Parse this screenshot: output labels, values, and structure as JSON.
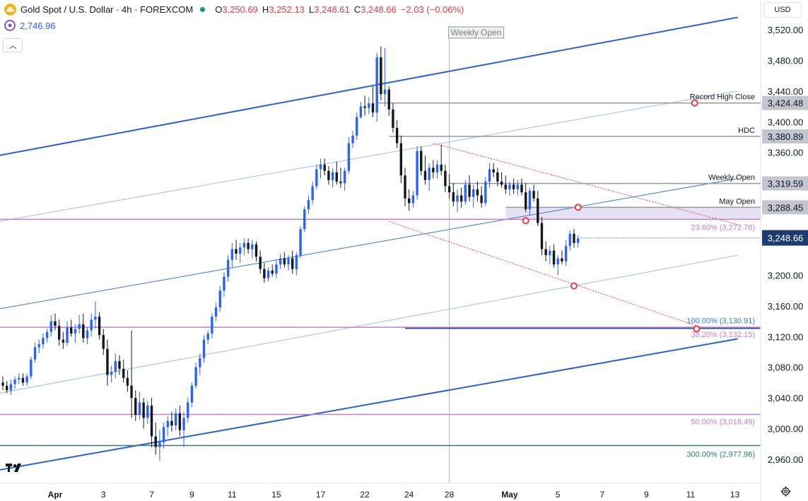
{
  "header": {
    "symbol_title": "Gold Spot / U.S. Dollar · 4h · FOREXCOM",
    "open_label": "O",
    "open": "3,250.69",
    "high_label": "H",
    "high": "3,252.13",
    "low_label": "L",
    "low": "3,248.61",
    "close_label": "C",
    "close": "3,248.66",
    "change": "−2.03 (−0.06%)",
    "indicator_value": "2,746.96"
  },
  "currency": "USD",
  "colors": {
    "up": "#2962ff",
    "down": "#131722",
    "channel": "#2a62c9",
    "pink": "#c77dca",
    "teal": "#2b7a78",
    "gray": "#9598a1",
    "red": "#f23645",
    "last_price": "#1e3a6e"
  },
  "chart_data": {
    "type": "candlestick",
    "title": "Gold Spot / U.S. Dollar · 4h · FOREXCOM",
    "ylim": [
      2940,
      3540
    ],
    "price_ticks": [
      "3,520.00",
      "3,480.00",
      "3,440.00",
      "3,400.00",
      "3,360.00",
      "3,200.00",
      "3,160.00",
      "3,120.00",
      "3,080.00",
      "3,040.00",
      "3,000.00",
      "2,960.00"
    ],
    "price_tick_values": [
      3520,
      3480,
      3440,
      3400,
      3360,
      3200,
      3160,
      3120,
      3080,
      3040,
      3000,
      2960
    ],
    "x_ticks": [
      {
        "label": "Apr",
        "bar": 13
      },
      {
        "label": "3",
        "bar": 25
      },
      {
        "label": "7",
        "bar": 37
      },
      {
        "label": "9",
        "bar": 47
      },
      {
        "label": "11",
        "bar": 57
      },
      {
        "label": "15",
        "bar": 68
      },
      {
        "label": "17",
        "bar": 79
      },
      {
        "label": "22",
        "bar": 90
      },
      {
        "label": "24",
        "bar": 101
      },
      {
        "label": "28",
        "bar": 111
      },
      {
        "label": "May",
        "bar": 126
      },
      {
        "label": "5",
        "bar": 138
      },
      {
        "label": "7",
        "bar": 149
      },
      {
        "label": "9",
        "bar": 160
      },
      {
        "label": "11",
        "bar": 171
      },
      {
        "label": "13",
        "bar": 182
      }
    ],
    "ohlc": [
      [
        3060,
        3068,
        3050,
        3056
      ],
      [
        3056,
        3062,
        3046,
        3050
      ],
      [
        3050,
        3064,
        3044,
        3058
      ],
      [
        3058,
        3068,
        3052,
        3064
      ],
      [
        3064,
        3072,
        3058,
        3066
      ],
      [
        3066,
        3072,
        3056,
        3060
      ],
      [
        3060,
        3072,
        3056,
        3068
      ],
      [
        3068,
        3094,
        3064,
        3090
      ],
      [
        3090,
        3112,
        3086,
        3106
      ],
      [
        3106,
        3116,
        3098,
        3110
      ],
      [
        3110,
        3124,
        3104,
        3118
      ],
      [
        3118,
        3130,
        3112,
        3126
      ],
      [
        3126,
        3148,
        3120,
        3140
      ],
      [
        3140,
        3150,
        3128,
        3134
      ],
      [
        3134,
        3142,
        3108,
        3116
      ],
      [
        3116,
        3126,
        3104,
        3112
      ],
      [
        3112,
        3140,
        3108,
        3132
      ],
      [
        3132,
        3142,
        3120,
        3124
      ],
      [
        3124,
        3136,
        3112,
        3130
      ],
      [
        3130,
        3148,
        3124,
        3136
      ],
      [
        3136,
        3150,
        3112,
        3118
      ],
      [
        3118,
        3132,
        3110,
        3128
      ],
      [
        3128,
        3150,
        3120,
        3142
      ],
      [
        3142,
        3166,
        3130,
        3146
      ],
      [
        3146,
        3152,
        3116,
        3122
      ],
      [
        3122,
        3130,
        3096,
        3104
      ],
      [
        3104,
        3116,
        3056,
        3070
      ],
      [
        3070,
        3082,
        3060,
        3074
      ],
      [
        3074,
        3098,
        3066,
        3088
      ],
      [
        3088,
        3096,
        3070,
        3078
      ],
      [
        3078,
        3090,
        3060,
        3066
      ],
      [
        3066,
        3076,
        3048,
        3056
      ],
      [
        3056,
        3128,
        3014,
        3040
      ],
      [
        3040,
        3050,
        3010,
        3018
      ],
      [
        3018,
        3048,
        3012,
        3034
      ],
      [
        3034,
        3040,
        3000,
        3014
      ],
      [
        3014,
        3036,
        3006,
        3030
      ],
      [
        3030,
        3040,
        2976,
        2990
      ],
      [
        2990,
        3008,
        2966,
        2976
      ],
      [
        2976,
        2998,
        2958,
        2982
      ],
      [
        2982,
        3008,
        2974,
        3002
      ],
      [
        3002,
        3016,
        2990,
        3010
      ],
      [
        3010,
        3022,
        2996,
        3004
      ],
      [
        3004,
        3026,
        2998,
        3020
      ],
      [
        3020,
        3030,
        2990,
        2998
      ],
      [
        2998,
        3022,
        2976,
        3014
      ],
      [
        3014,
        3040,
        3008,
        3034
      ],
      [
        3034,
        3060,
        3028,
        3056
      ],
      [
        3056,
        3086,
        3052,
        3080
      ],
      [
        3080,
        3098,
        3070,
        3092
      ],
      [
        3092,
        3122,
        3086,
        3116
      ],
      [
        3116,
        3128,
        3110,
        3124
      ],
      [
        3124,
        3150,
        3118,
        3146
      ],
      [
        3146,
        3164,
        3140,
        3158
      ],
      [
        3158,
        3186,
        3152,
        3180
      ],
      [
        3180,
        3204,
        3172,
        3198
      ],
      [
        3198,
        3226,
        3192,
        3220
      ],
      [
        3220,
        3242,
        3210,
        3234
      ],
      [
        3234,
        3246,
        3220,
        3228
      ],
      [
        3228,
        3242,
        3216,
        3236
      ],
      [
        3236,
        3248,
        3226,
        3242
      ],
      [
        3242,
        3248,
        3228,
        3234
      ],
      [
        3234,
        3246,
        3222,
        3240
      ],
      [
        3240,
        3244,
        3218,
        3224
      ],
      [
        3224,
        3232,
        3202,
        3208
      ],
      [
        3208,
        3216,
        3190,
        3196
      ],
      [
        3196,
        3210,
        3192,
        3206
      ],
      [
        3206,
        3214,
        3198,
        3202
      ],
      [
        3202,
        3220,
        3196,
        3214
      ],
      [
        3214,
        3228,
        3208,
        3222
      ],
      [
        3222,
        3230,
        3210,
        3214
      ],
      [
        3214,
        3226,
        3206,
        3222
      ],
      [
        3222,
        3232,
        3202,
        3208
      ],
      [
        3208,
        3230,
        3200,
        3226
      ],
      [
        3226,
        3264,
        3222,
        3260
      ],
      [
        3260,
        3290,
        3256,
        3286
      ],
      [
        3286,
        3304,
        3280,
        3298
      ],
      [
        3298,
        3322,
        3292,
        3316
      ],
      [
        3316,
        3344,
        3312,
        3338
      ],
      [
        3338,
        3352,
        3326,
        3344
      ],
      [
        3344,
        3352,
        3330,
        3336
      ],
      [
        3336,
        3342,
        3318,
        3324
      ],
      [
        3324,
        3340,
        3314,
        3334
      ],
      [
        3334,
        3348,
        3318,
        3322
      ],
      [
        3322,
        3340,
        3314,
        3320
      ],
      [
        3320,
        3340,
        3310,
        3336
      ],
      [
        3336,
        3380,
        3332,
        3372
      ],
      [
        3372,
        3388,
        3366,
        3382
      ],
      [
        3382,
        3412,
        3376,
        3406
      ],
      [
        3406,
        3426,
        3404,
        3420
      ],
      [
        3420,
        3434,
        3408,
        3418
      ],
      [
        3418,
        3432,
        3410,
        3424
      ],
      [
        3424,
        3446,
        3406,
        3412
      ],
      [
        3412,
        3490,
        3400,
        3484
      ],
      [
        3484,
        3498,
        3428,
        3436
      ],
      [
        3436,
        3496,
        3420,
        3442
      ],
      [
        3442,
        3446,
        3408,
        3416
      ],
      [
        3416,
        3424,
        3386,
        3392
      ],
      [
        3392,
        3402,
        3366,
        3372
      ],
      [
        3372,
        3382,
        3320,
        3330
      ],
      [
        3330,
        3340,
        3290,
        3300
      ],
      [
        3300,
        3312,
        3284,
        3294
      ],
      [
        3294,
        3310,
        3288,
        3304
      ],
      [
        3304,
        3368,
        3298,
        3362
      ],
      [
        3362,
        3368,
        3330,
        3336
      ],
      [
        3336,
        3356,
        3318,
        3324
      ],
      [
        3324,
        3346,
        3310,
        3340
      ],
      [
        3340,
        3350,
        3326,
        3334
      ],
      [
        3334,
        3350,
        3326,
        3344
      ],
      [
        3344,
        3370,
        3330,
        3336
      ],
      [
        3336,
        3344,
        3308,
        3316
      ],
      [
        3316,
        3332,
        3300,
        3308
      ],
      [
        3308,
        3320,
        3290,
        3296
      ],
      [
        3296,
        3312,
        3282,
        3304
      ],
      [
        3304,
        3314,
        3288,
        3296
      ],
      [
        3296,
        3324,
        3292,
        3318
      ],
      [
        3318,
        3330,
        3296,
        3302
      ],
      [
        3302,
        3318,
        3288,
        3312
      ],
      [
        3312,
        3322,
        3296,
        3304
      ],
      [
        3304,
        3316,
        3288,
        3294
      ],
      [
        3294,
        3328,
        3290,
        3322
      ],
      [
        3322,
        3346,
        3314,
        3338
      ],
      [
        3338,
        3346,
        3328,
        3334
      ],
      [
        3334,
        3340,
        3316,
        3322
      ],
      [
        3322,
        3334,
        3314,
        3318
      ],
      [
        3318,
        3330,
        3306,
        3312
      ],
      [
        3312,
        3322,
        3304,
        3318
      ],
      [
        3318,
        3326,
        3306,
        3312
      ],
      [
        3312,
        3324,
        3304,
        3318
      ],
      [
        3318,
        3326,
        3304,
        3308
      ],
      [
        3308,
        3320,
        3282,
        3286
      ],
      [
        3286,
        3314,
        3278,
        3310
      ],
      [
        3310,
        3318,
        3296,
        3300
      ],
      [
        3300,
        3310,
        3264,
        3268
      ],
      [
        3268,
        3276,
        3226,
        3234
      ],
      [
        3234,
        3244,
        3218,
        3226
      ],
      [
        3226,
        3238,
        3214,
        3232
      ],
      [
        3232,
        3240,
        3210,
        3214
      ],
      [
        3214,
        3226,
        3200,
        3222
      ],
      [
        3222,
        3232,
        3214,
        3218
      ],
      [
        3218,
        3246,
        3212,
        3238
      ],
      [
        3238,
        3258,
        3232,
        3254
      ],
      [
        3254,
        3260,
        3236,
        3242
      ],
      [
        3242,
        3252,
        3236,
        3248
      ]
    ],
    "horizontal_levels": [
      {
        "name": "record-high-close",
        "value": 3424.48,
        "label": "Record High Close",
        "axis_label": "3,424.48",
        "style": "gray",
        "from_bar": 93
      },
      {
        "name": "hdc",
        "value": 3380.89,
        "label": "HDC",
        "axis_label": "3,380.89",
        "style": "gray",
        "from_bar": 96
      },
      {
        "name": "weekly-open",
        "value": 3319.59,
        "label": "Weekly Open",
        "axis_label": "3,319.59",
        "style": "gray",
        "from_bar": 111
      },
      {
        "name": "may-open",
        "value": 3288.45,
        "label": "May Open",
        "axis_label": "3,288.45",
        "style": "gray",
        "from_bar": 125
      },
      {
        "name": "fib-23-6",
        "value": 3272.78,
        "label": "23.60% (3,272.78)",
        "style": "pink",
        "from_bar": 0
      },
      {
        "name": "fib-100",
        "value": 3130.91,
        "label": "100.00% (3,130.91)",
        "style": "blue",
        "from_bar": 100
      },
      {
        "name": "fib-38-2",
        "value": 3132.15,
        "label": "38.20% (3,132.15)",
        "style": "pink",
        "from_bar": 0
      },
      {
        "name": "fib-50",
        "value": 3018.49,
        "label": "50.00% (3,018.49)",
        "style": "pink",
        "from_bar": 0
      },
      {
        "name": "fib-300",
        "value": 2977.96,
        "label": "300.00% (2,977.96)",
        "style": "teal",
        "from_bar": 0
      }
    ],
    "last_price": {
      "value": 3248.66,
      "label": "3,248.66"
    },
    "vertical_marker": {
      "label": "Weekly Open",
      "bar": 111
    },
    "channel_lines": [
      {
        "name": "channel-upper",
        "from": [
          -1,
          3356
        ],
        "to": [
          182.7,
          3536
        ],
        "style": "bold"
      },
      {
        "name": "channel-lower",
        "from": [
          -1,
          2946
        ],
        "to": [
          182.7,
          3117
        ],
        "style": "bold"
      },
      {
        "name": "channel-median",
        "from": [
          -1,
          3156
        ],
        "to": [
          182.7,
          3326
        ],
        "style": "thin"
      },
      {
        "name": "channel-upper-quarter",
        "from": [
          -1,
          3270
        ],
        "to": [
          182.7,
          3440
        ],
        "style": "faint"
      },
      {
        "name": "channel-lower-quarter",
        "from": [
          -1,
          3046
        ],
        "to": [
          182.7,
          3226
        ],
        "style": "faint"
      }
    ],
    "descending_lines": [
      {
        "name": "slope-upper",
        "from": [
          107,
          3372
        ],
        "to": [
          182.7,
          3266
        ]
      },
      {
        "name": "slope-lower",
        "from": [
          96,
          3270
        ],
        "to": [
          172.5,
          3134
        ]
      }
    ],
    "pivot_markers": [
      {
        "name": "record-high-marker",
        "bar": 172,
        "value": 3424.48
      },
      {
        "name": "may-open-marker",
        "bar": 143,
        "value": 3288.45
      },
      {
        "name": "channel-touch-marker",
        "bar": 130,
        "value": 3271
      },
      {
        "name": "lower-slope-marker",
        "bar": 142,
        "value": 3186
      },
      {
        "name": "fib-confluence-marker",
        "bar": 172.5,
        "value": 3130
      }
    ]
  }
}
